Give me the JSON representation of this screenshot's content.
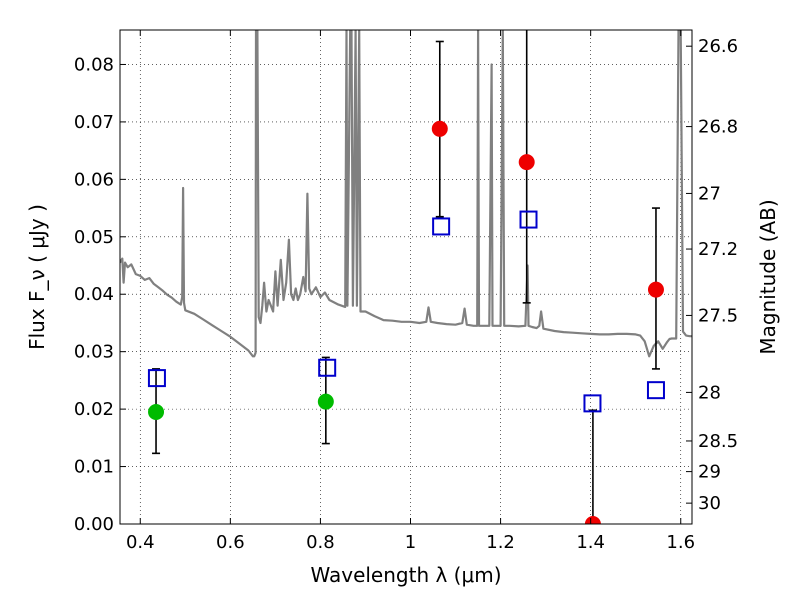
{
  "chart_data": {
    "type": "scatter",
    "xlabel": "Wavelength  λ (μm)",
    "ylabel_left": "Flux  F_ν  ( μJy )",
    "ylabel_right": "Magnitude (AB)",
    "xlim": [
      0.355,
      1.625
    ],
    "ylim": [
      0.0,
      0.086
    ],
    "grid": true,
    "x_ticks": [
      {
        "value": 0.4,
        "label": "0.4"
      },
      {
        "value": 0.6,
        "label": "0.6"
      },
      {
        "value": 0.8,
        "label": "0.8"
      },
      {
        "value": 1.0,
        "label": "1"
      },
      {
        "value": 1.2,
        "label": "1.2"
      },
      {
        "value": 1.4,
        "label": "1.4"
      },
      {
        "value": 1.6,
        "label": "1.6"
      }
    ],
    "y_ticks_left": [
      {
        "value": 0.0,
        "label": "0.00"
      },
      {
        "value": 0.01,
        "label": "0.01"
      },
      {
        "value": 0.02,
        "label": "0.02"
      },
      {
        "value": 0.03,
        "label": "0.03"
      },
      {
        "value": 0.04,
        "label": "0.04"
      },
      {
        "value": 0.05,
        "label": "0.05"
      },
      {
        "value": 0.06,
        "label": "0.06"
      },
      {
        "value": 0.07,
        "label": "0.07"
      },
      {
        "value": 0.08,
        "label": "0.08"
      }
    ],
    "y_ticks_right": [
      {
        "mag": 26.6,
        "label": "26.6"
      },
      {
        "mag": 26.8,
        "label": "26.8"
      },
      {
        "mag": 27.0,
        "label": "27"
      },
      {
        "mag": 27.2,
        "label": "27.2"
      },
      {
        "mag": 27.5,
        "label": "27.5"
      },
      {
        "mag": 28.0,
        "label": "28"
      },
      {
        "mag": 28.5,
        "label": "28.5"
      },
      {
        "mag": 29.0,
        "label": "29"
      },
      {
        "mag": 30.0,
        "label": "30"
      }
    ],
    "series": [
      {
        "kind": "model-spectrum",
        "color": "#808080",
        "points": [
          [
            0.355,
            0.0455
          ],
          [
            0.36,
            0.0462
          ],
          [
            0.363,
            0.042
          ],
          [
            0.366,
            0.0455
          ],
          [
            0.372,
            0.0447
          ],
          [
            0.38,
            0.0452
          ],
          [
            0.39,
            0.0435
          ],
          [
            0.4,
            0.0432
          ],
          [
            0.41,
            0.0425
          ],
          [
            0.42,
            0.0428
          ],
          [
            0.43,
            0.0418
          ],
          [
            0.44,
            0.0412
          ],
          [
            0.45,
            0.0406
          ],
          [
            0.46,
            0.0399
          ],
          [
            0.47,
            0.0394
          ],
          [
            0.48,
            0.0387
          ],
          [
            0.49,
            0.0382
          ],
          [
            0.493,
            0.0395
          ],
          [
            0.495,
            0.0585
          ],
          [
            0.497,
            0.0385
          ],
          [
            0.5,
            0.0372
          ],
          [
            0.52,
            0.0366
          ],
          [
            0.54,
            0.0356
          ],
          [
            0.56,
            0.0346
          ],
          [
            0.58,
            0.0336
          ],
          [
            0.6,
            0.0326
          ],
          [
            0.62,
            0.0314
          ],
          [
            0.64,
            0.0302
          ],
          [
            0.65,
            0.0292
          ],
          [
            0.653,
            0.0292
          ],
          [
            0.656,
            0.0298
          ],
          [
            0.657,
            0.086
          ],
          [
            0.66,
            0.086
          ],
          [
            0.663,
            0.036
          ],
          [
            0.667,
            0.035
          ],
          [
            0.671,
            0.038
          ],
          [
            0.675,
            0.042
          ],
          [
            0.68,
            0.037
          ],
          [
            0.685,
            0.039
          ],
          [
            0.69,
            0.038
          ],
          [
            0.695,
            0.037
          ],
          [
            0.7,
            0.044
          ],
          [
            0.705,
            0.038
          ],
          [
            0.712,
            0.046
          ],
          [
            0.718,
            0.039
          ],
          [
            0.724,
            0.042
          ],
          [
            0.73,
            0.0495
          ],
          [
            0.735,
            0.04
          ],
          [
            0.74,
            0.039
          ],
          [
            0.745,
            0.041
          ],
          [
            0.75,
            0.039
          ],
          [
            0.755,
            0.04
          ],
          [
            0.762,
            0.043
          ],
          [
            0.767,
            0.0405
          ],
          [
            0.771,
            0.0575
          ],
          [
            0.775,
            0.041
          ],
          [
            0.78,
            0.04
          ],
          [
            0.79,
            0.0412
          ],
          [
            0.8,
            0.0395
          ],
          [
            0.81,
            0.0403
          ],
          [
            0.82,
            0.039
          ],
          [
            0.84,
            0.0382
          ],
          [
            0.855,
            0.0378
          ],
          [
            0.858,
            0.086
          ],
          [
            0.86,
            0.038
          ],
          [
            0.866,
            0.086
          ],
          [
            0.869,
            0.086
          ],
          [
            0.872,
            0.038
          ],
          [
            0.878,
            0.086
          ],
          [
            0.881,
            0.038
          ],
          [
            0.886,
            0.086
          ],
          [
            0.889,
            0.037
          ],
          [
            0.9,
            0.037
          ],
          [
            0.92,
            0.0362
          ],
          [
            0.94,
            0.0355
          ],
          [
            0.96,
            0.0354
          ],
          [
            0.98,
            0.0352
          ],
          [
            1.0,
            0.0352
          ],
          [
            1.02,
            0.035
          ],
          [
            1.035,
            0.0352
          ],
          [
            1.04,
            0.0377
          ],
          [
            1.045,
            0.0352
          ],
          [
            1.06,
            0.035
          ],
          [
            1.08,
            0.0348
          ],
          [
            1.1,
            0.0347
          ],
          [
            1.115,
            0.035
          ],
          [
            1.12,
            0.0375
          ],
          [
            1.125,
            0.0347
          ],
          [
            1.14,
            0.0345
          ],
          [
            1.148,
            0.0345
          ],
          [
            1.15,
            0.086
          ],
          [
            1.152,
            0.0345
          ],
          [
            1.165,
            0.0345
          ],
          [
            1.175,
            0.0345
          ],
          [
            1.18,
            0.08
          ],
          [
            1.182,
            0.0345
          ],
          [
            1.19,
            0.0345
          ],
          [
            1.2,
            0.0345
          ],
          [
            1.205,
            0.086
          ],
          [
            1.208,
            0.0345
          ],
          [
            1.22,
            0.0345
          ],
          [
            1.24,
            0.0344
          ],
          [
            1.255,
            0.0345
          ],
          [
            1.26,
            0.045
          ],
          [
            1.262,
            0.0345
          ],
          [
            1.27,
            0.0343
          ],
          [
            1.28,
            0.0341
          ],
          [
            1.286,
            0.0345
          ],
          [
            1.29,
            0.037
          ],
          [
            1.295,
            0.034
          ],
          [
            1.32,
            0.0336
          ],
          [
            1.34,
            0.0334
          ],
          [
            1.36,
            0.0333
          ],
          [
            1.38,
            0.0332
          ],
          [
            1.4,
            0.0331
          ],
          [
            1.42,
            0.033
          ],
          [
            1.44,
            0.033
          ],
          [
            1.46,
            0.0331
          ],
          [
            1.48,
            0.0331
          ],
          [
            1.5,
            0.033
          ],
          [
            1.51,
            0.0328
          ],
          [
            1.52,
            0.0318
          ],
          [
            1.53,
            0.0292
          ],
          [
            1.54,
            0.031
          ],
          [
            1.55,
            0.0318
          ],
          [
            1.56,
            0.0305
          ],
          [
            1.57,
            0.0317
          ],
          [
            1.575,
            0.0322
          ],
          [
            1.58,
            0.0323
          ],
          [
            1.59,
            0.0323
          ],
          [
            1.595,
            0.086
          ],
          [
            1.6,
            0.086
          ],
          [
            1.605,
            0.0335
          ],
          [
            1.612,
            0.0328
          ],
          [
            1.62,
            0.0327
          ],
          [
            1.625,
            0.0327
          ]
        ]
      },
      {
        "kind": "observed-flux",
        "marker": "filled-circle",
        "points": [
          {
            "x": 0.435,
            "y": 0.0195,
            "yerr_low": 0.0123,
            "yerr_high": 0.027,
            "color": "#00bb00"
          },
          {
            "x": 0.812,
            "y": 0.0213,
            "yerr_low": 0.014,
            "yerr_high": 0.029,
            "color": "#00bb00"
          },
          {
            "x": 1.065,
            "y": 0.0688,
            "yerr_low": 0.0535,
            "yerr_high": 0.084,
            "color": "#ee0000"
          },
          {
            "x": 1.258,
            "y": 0.063,
            "yerr_low": 0.0385,
            "yerr_high": 0.087,
            "color": "#ee0000"
          },
          {
            "x": 1.405,
            "y": 0.0,
            "yerr_low": 0.0,
            "yerr_high": 0.0198,
            "color": "#ee0000"
          },
          {
            "x": 1.545,
            "y": 0.0408,
            "yerr_low": 0.027,
            "yerr_high": 0.055,
            "color": "#ee0000"
          }
        ]
      },
      {
        "kind": "model-band-flux",
        "marker": "open-square",
        "color": "#0000cc",
        "points": [
          {
            "x": 0.437,
            "y": 0.0254
          },
          {
            "x": 0.815,
            "y": 0.0272
          },
          {
            "x": 1.068,
            "y": 0.0518
          },
          {
            "x": 1.262,
            "y": 0.053
          },
          {
            "x": 1.404,
            "y": 0.021
          },
          {
            "x": 1.545,
            "y": 0.0233
          }
        ]
      }
    ]
  }
}
